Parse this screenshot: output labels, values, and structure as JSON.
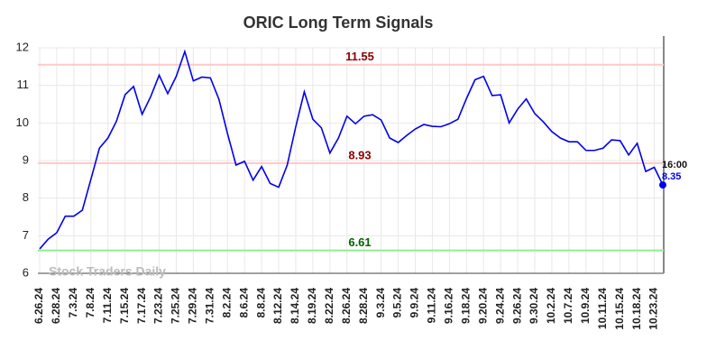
{
  "chart_data": {
    "type": "line",
    "title": "ORIC Long Term Signals",
    "categories": [
      "6.26.24",
      null,
      "6.28.24",
      null,
      "7.3.24",
      null,
      "7.8.24",
      null,
      "7.11.24",
      null,
      "7.15.24",
      null,
      "7.17.24",
      null,
      "7.23.24",
      null,
      "7.25.24",
      null,
      "7.29.24",
      null,
      "7.31.24",
      null,
      "8.2.24",
      null,
      "8.6.24",
      null,
      "8.8.24",
      null,
      "8.12.24",
      null,
      "8.14.24",
      null,
      "8.19.24",
      null,
      "8.22.24",
      null,
      "8.26.24",
      null,
      "8.28.24",
      null,
      "9.3.24",
      null,
      "9.5.24",
      null,
      "9.9.24",
      null,
      "9.11.24",
      null,
      "9.16.24",
      null,
      "9.18.24",
      null,
      "9.20.24",
      null,
      "9.24.24",
      null,
      "9.26.24",
      null,
      "9.30.24",
      null,
      "10.2.24",
      null,
      "10.7.24",
      null,
      "10.9.24",
      null,
      "10.11.24",
      null,
      "10.15.24",
      null,
      "10.18.24",
      null,
      "10.23.24",
      null
    ],
    "series": [
      {
        "color": "#0000ee",
        "values": [
          6.65,
          6.91,
          7.08,
          7.52,
          7.52,
          7.68,
          8.5,
          9.33,
          9.6,
          10.05,
          10.75,
          10.97,
          10.23,
          10.7,
          11.27,
          10.78,
          11.24,
          11.9,
          11.12,
          11.22,
          11.2,
          10.63,
          9.72,
          8.88,
          8.98,
          8.48,
          8.84,
          8.39,
          8.29,
          8.88,
          9.9,
          10.83,
          10.1,
          9.87,
          9.2,
          9.6,
          10.18,
          9.98,
          10.18,
          10.22,
          10.08,
          9.6,
          9.48,
          9.67,
          9.84,
          9.96,
          9.91,
          9.9,
          9.98,
          10.1,
          10.65,
          11.15,
          11.24,
          10.73,
          10.75,
          10.0,
          10.37,
          10.64,
          10.25,
          10.03,
          9.77,
          9.6,
          9.5,
          9.5,
          9.27,
          9.27,
          9.33,
          9.55,
          9.53,
          9.15,
          9.46,
          8.71,
          8.82,
          8.35
        ]
      }
    ],
    "hlines": [
      {
        "value": 11.55,
        "color": "#ffc8c8",
        "label_color": "#8b0000"
      },
      {
        "value": 8.93,
        "color": "#ffc8c8",
        "label_color": "#8b0000"
      },
      {
        "value": 6.61,
        "color": "#90ee90",
        "label_color": "#006400"
      }
    ],
    "last_time": "16:00",
    "watermark": "Stock Traders Daily",
    "ylim": [
      6,
      12
    ],
    "yticks": [
      6,
      7,
      8,
      9,
      10,
      11,
      12
    ],
    "grid": true
  }
}
